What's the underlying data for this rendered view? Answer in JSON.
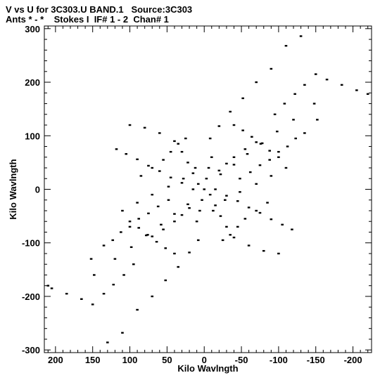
{
  "header": {
    "line1": "V vs U for 3C303.U BAND.1   Source:3C303",
    "line2": "Ants * - *    Stokes I  IF# 1 - 2  Chan# 1"
  },
  "chart_data": {
    "type": "scatter",
    "title": "V vs U for 3C303.U BAND.1   Source:3C303",
    "subtitle": "Ants * - *    Stokes I  IF# 1 - 2  Chan# 1",
    "xlabel": "Kilo Wavlngth",
    "ylabel": "Kilo Wavlngth",
    "xlim": [
      215,
      -225
    ],
    "ylim": [
      -305,
      305
    ],
    "x_reversed": true,
    "xticks": [
      200,
      150,
      100,
      50,
      0,
      -50,
      -100,
      -150,
      -200
    ],
    "xtick_labels": [
      "200",
      "150",
      "100",
      "50",
      "0",
      "-50",
      "-100",
      "-150",
      "-200"
    ],
    "yticks": [
      300,
      200,
      100,
      0,
      -100,
      -200,
      -300
    ],
    "ytick_labels": [
      "300",
      "200",
      "100",
      "0",
      "-100",
      "-200",
      "-300"
    ],
    "grid": false,
    "marker_color": "#000000",
    "series": [
      {
        "x": [
          -130,
          -110,
          -90,
          -70,
          -52,
          -35,
          -20,
          -8,
          130,
          110,
          90,
          70,
          52,
          35,
          20,
          8,
          -150,
          -135,
          -122,
          -108,
          -95,
          150,
          135,
          122,
          108,
          95,
          -165,
          -185,
          -205,
          -220,
          -120,
          -98,
          -78,
          -58,
          -40,
          -22,
          165,
          185,
          205,
          210,
          120,
          98,
          78,
          58,
          40,
          22,
          -148,
          -152,
          -135,
          -123,
          -112,
          -100,
          -88,
          -75,
          -62,
          -48,
          148,
          152,
          135,
          123,
          112,
          100,
          88,
          75,
          62,
          48,
          -110,
          -90,
          -70,
          -48,
          -28,
          -12,
          110,
          90,
          70,
          48,
          28,
          12,
          -8,
          -15,
          -22,
          -30,
          -40,
          -60,
          -80,
          -100,
          8,
          15,
          22,
          30,
          40,
          60,
          80,
          100,
          -15,
          -30,
          -45,
          -60,
          -75,
          -90,
          -105,
          -118,
          15,
          30,
          45,
          60,
          75,
          90,
          105,
          118,
          -40,
          -52,
          -64,
          -76,
          -88,
          -100,
          40,
          52,
          64,
          76,
          88,
          100,
          0,
          -3,
          3,
          -6,
          6,
          -10,
          10,
          -45,
          -55,
          -35,
          -70,
          -25,
          -85,
          45,
          55,
          35,
          70,
          25,
          85,
          -20,
          -30,
          -40,
          -55,
          -70,
          20,
          30,
          40,
          55,
          70
        ],
        "y": [
          286,
          268,
          225,
          200,
          170,
          145,
          118,
          95,
          -286,
          -268,
          -225,
          -200,
          -170,
          -145,
          -118,
          -95,
          215,
          195,
          178,
          160,
          140,
          -215,
          -195,
          -178,
          -160,
          -140,
          205,
          195,
          185,
          178,
          130,
          108,
          86,
          66,
          46,
          28,
          -205,
          -195,
          -185,
          -180,
          -130,
          -108,
          -86,
          -66,
          -46,
          -28,
          160,
          130,
          105,
          95,
          80,
          70,
          55,
          45,
          32,
          20,
          -160,
          -130,
          -105,
          -95,
          -80,
          -70,
          -55,
          -45,
          -32,
          -20,
          40,
          25,
          10,
          -5,
          -20,
          -40,
          -40,
          -25,
          -10,
          5,
          20,
          40,
          -10,
          -30,
          -50,
          -70,
          -90,
          -105,
          -115,
          -120,
          10,
          30,
          50,
          70,
          90,
          105,
          115,
          120,
          0,
          -12,
          -22,
          -34,
          -44,
          -56,
          -66,
          -75,
          0,
          12,
          22,
          34,
          44,
          56,
          66,
          75,
          120,
          110,
          98,
          85,
          72,
          60,
          -120,
          -110,
          -98,
          -85,
          -72,
          -60,
          0,
          20,
          -20,
          40,
          -40,
          60,
          -60,
          -70,
          -55,
          -85,
          -40,
          -95,
          -25,
          70,
          55,
          85,
          40,
          95,
          25,
          35,
          48,
          60,
          75,
          88,
          -35,
          -48,
          -60,
          -75,
          -88
        ]
      }
    ]
  }
}
